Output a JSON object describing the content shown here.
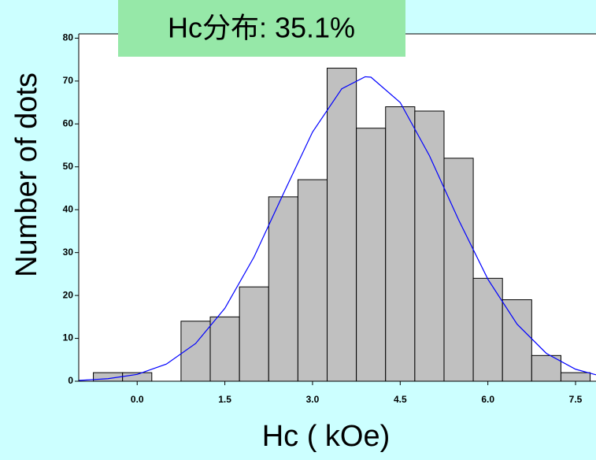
{
  "chart_data": {
    "type": "histogram",
    "title": "Hc分布: 35.1%",
    "x_label": "Hc ( kOe)",
    "y_label": "Number of dots",
    "bins": [
      -0.75,
      -0.25,
      0.25,
      0.75,
      1.25,
      1.75,
      2.25,
      2.75,
      3.25,
      3.75,
      4.25,
      4.75,
      5.25,
      5.75,
      6.25,
      6.75,
      7.25,
      7.75
    ],
    "counts": [
      2,
      2,
      0,
      14,
      15,
      22,
      43,
      47,
      73,
      59,
      64,
      63,
      52,
      24,
      19,
      6,
      2
    ],
    "color": "#c0c0c0",
    "curve": {
      "color": "#0000ff",
      "x": [
        -1,
        -0.5,
        0,
        0.5,
        1,
        1.5,
        2,
        2.5,
        3,
        3.5,
        3.9,
        4,
        4.5,
        5,
        5.5,
        6,
        6.5,
        7,
        7.5,
        7.85
      ],
      "y": [
        0.18,
        0.6,
        1.6,
        4.0,
        8.8,
        17.0,
        29.0,
        43.7,
        58.1,
        68.2,
        71,
        70.9,
        65.0,
        52.6,
        37.6,
        23.8,
        13.3,
        6.5,
        2.8,
        1.5
      ]
    },
    "xlim": [
      -1,
      7.85
    ],
    "ylim": [
      0,
      81
    ],
    "xticks": [
      {
        "value": 0,
        "label": "0.0"
      },
      1.5,
      {
        "value": 3,
        "label": "3.0"
      },
      4.5,
      {
        "value": 6,
        "label": "6.0"
      },
      7.5
    ],
    "yticks": [
      0,
      10,
      20,
      30,
      40,
      50,
      60,
      70,
      80
    ]
  }
}
